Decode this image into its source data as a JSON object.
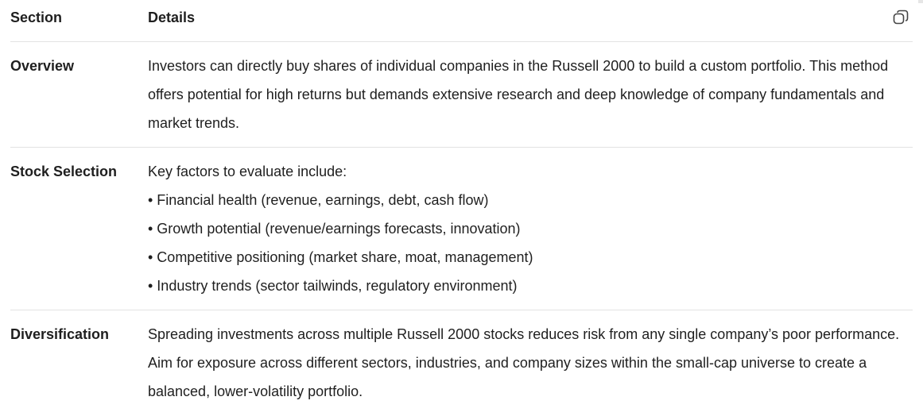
{
  "table": {
    "headers": [
      "Section",
      "Details"
    ],
    "copy_icon": "copy-icon",
    "rows": [
      {
        "section": "Overview",
        "details": "Investors can directly buy shares of individual companies in the Russell 2000 to build a custom portfolio. This method offers potential for high returns but demands extensive research and deep knowledge of company fundamentals and market trends."
      },
      {
        "section": "Stock Selection",
        "intro": "Key factors to evaluate include:",
        "bullets": [
          "• Financial health (revenue, earnings, debt, cash flow)",
          "• Growth potential (revenue/earnings forecasts, innovation)",
          "• Competitive positioning (market share, moat, management)",
          "• Industry trends (sector tailwinds, regulatory environment)"
        ]
      },
      {
        "section": "Diversification",
        "details": "Spreading investments across multiple Russell 2000 stocks reduces risk from any single company’s poor performance. Aim for exposure across different sectors, industries, and company sizes within the small-cap universe to create a balanced, lower-volatility portfolio."
      }
    ]
  }
}
